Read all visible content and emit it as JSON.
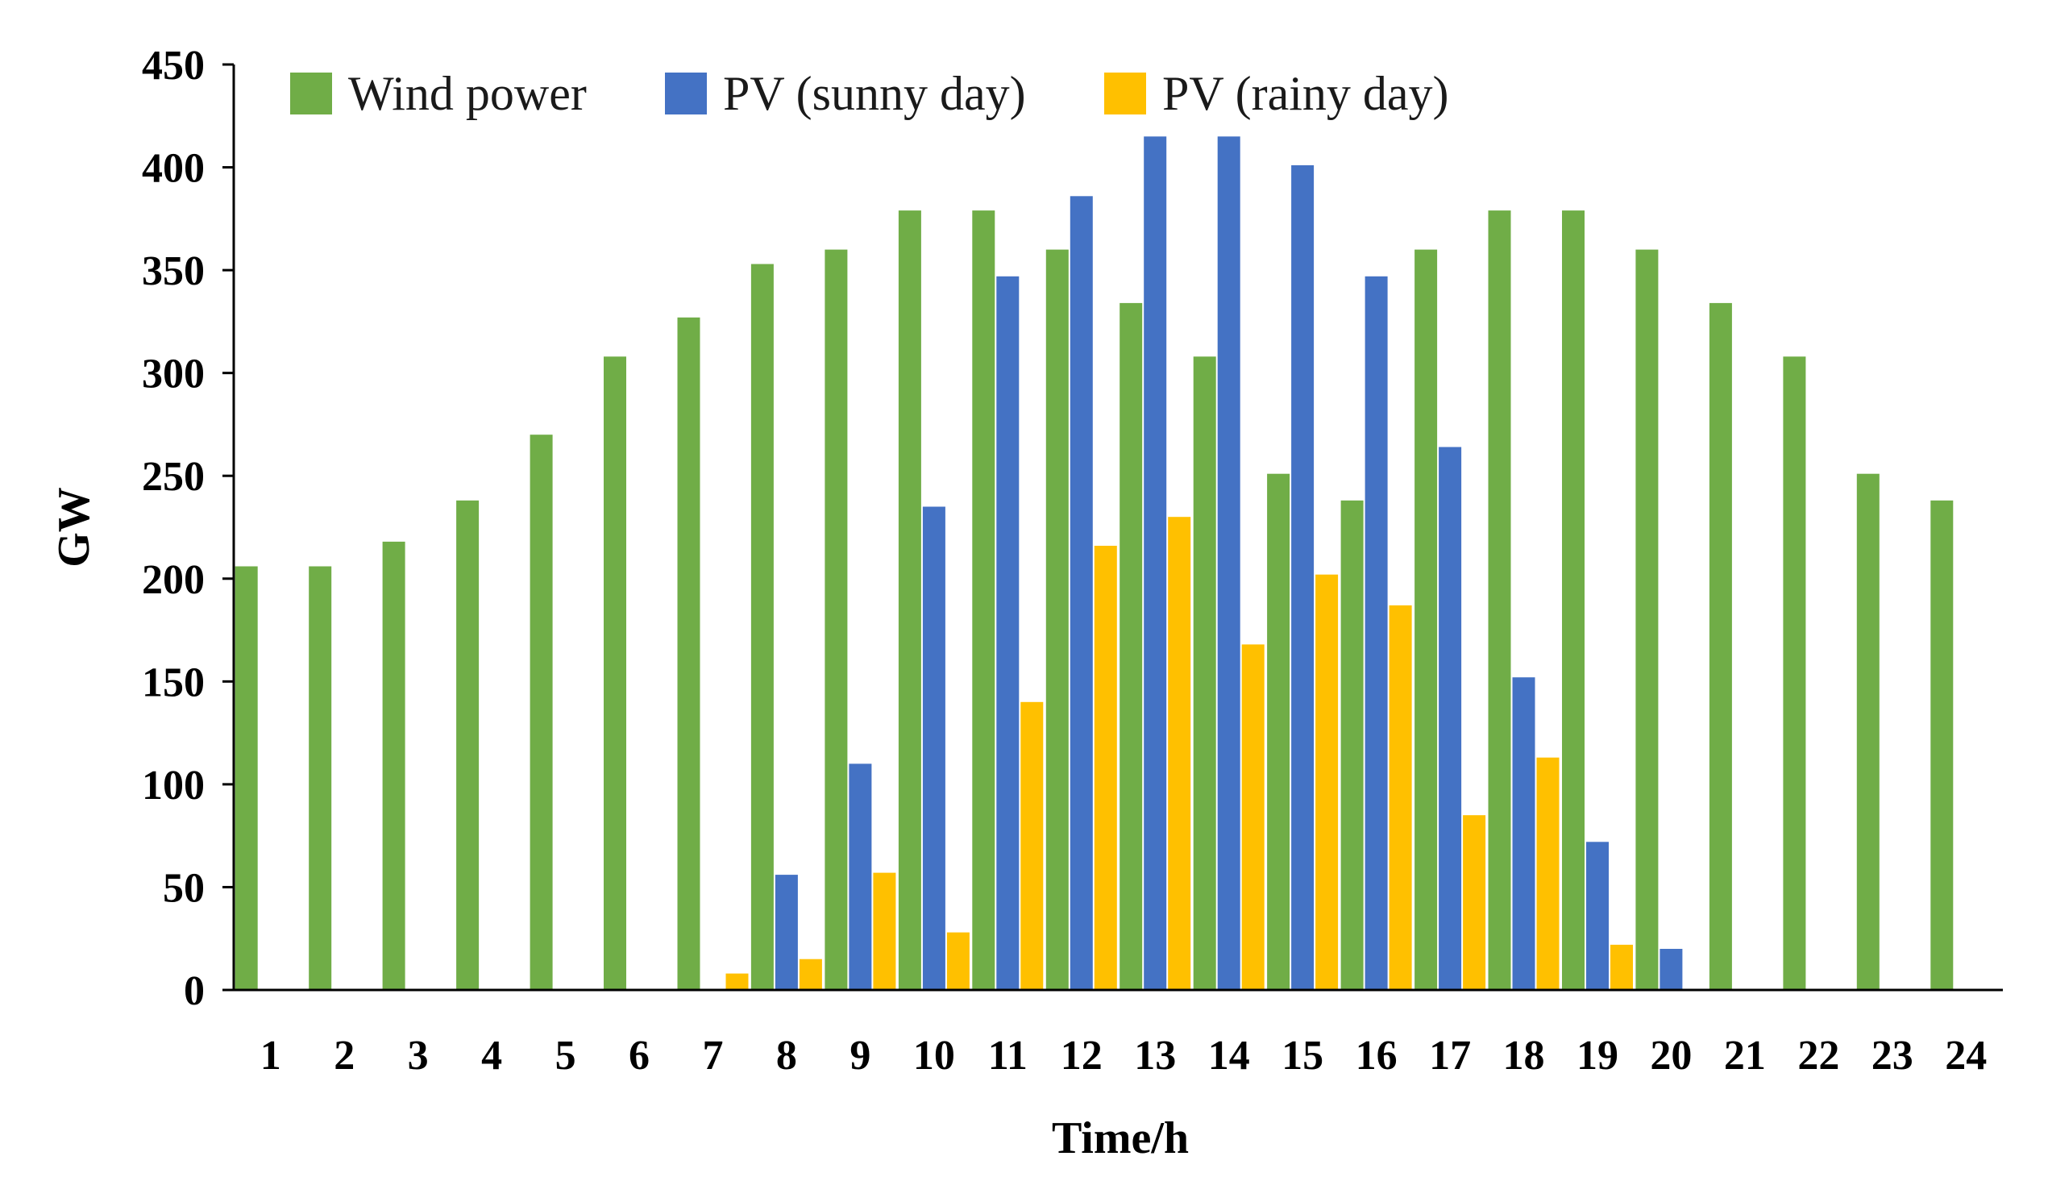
{
  "chart_data": {
    "type": "bar",
    "title": "",
    "xlabel": "Time/h",
    "ylabel": "GW",
    "ylim": [
      0,
      450
    ],
    "yticks": [
      0,
      50,
      100,
      150,
      200,
      250,
      300,
      350,
      400,
      450
    ],
    "categories": [
      "1",
      "2",
      "3",
      "4",
      "5",
      "6",
      "7",
      "8",
      "9",
      "10",
      "11",
      "12",
      "13",
      "14",
      "15",
      "16",
      "17",
      "18",
      "19",
      "20",
      "21",
      "22",
      "23",
      "24"
    ],
    "legend_position": "top",
    "grid": false,
    "series": [
      {
        "name": "Wind power",
        "color": "#70ad47",
        "values": [
          206,
          206,
          218,
          238,
          270,
          308,
          327,
          353,
          360,
          379,
          379,
          360,
          334,
          308,
          251,
          238,
          360,
          379,
          379,
          360,
          334,
          308,
          251,
          238
        ]
      },
      {
        "name": "PV (sunny day)",
        "color": "#4472c4",
        "values": [
          0,
          0,
          0,
          0,
          0,
          0,
          0,
          56,
          110,
          235,
          347,
          386,
          415,
          415,
          401,
          347,
          264,
          152,
          72,
          20,
          0,
          0,
          0,
          0
        ]
      },
      {
        "name": "PV (rainy day)",
        "color": "#ffc000",
        "values": [
          0,
          0,
          0,
          0,
          0,
          0,
          8,
          15,
          57,
          28,
          140,
          216,
          230,
          168,
          202,
          187,
          85,
          113,
          22,
          0,
          0,
          0,
          0,
          0
        ]
      }
    ]
  }
}
